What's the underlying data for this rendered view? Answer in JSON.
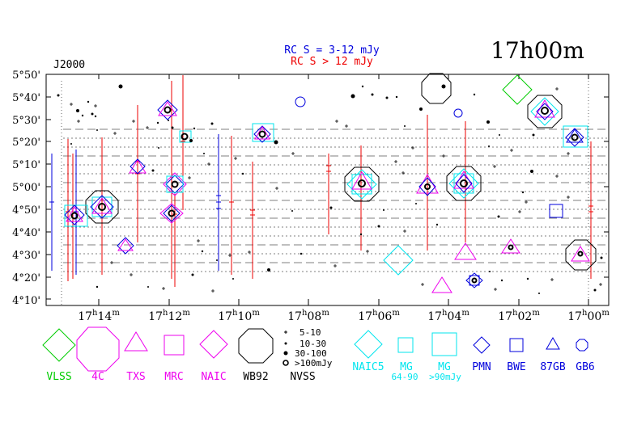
{
  "header": {
    "title": "17h00m",
    "epoch": "J2000",
    "legend_rc_low": "RC S = 3-12 mJy",
    "legend_rc_high": "RC S > 12 mJy"
  },
  "colors": {
    "vlss": "#00cc00",
    "magenta": "#ee00ee",
    "cyan": "#00e5ee",
    "blue": "#0000dd",
    "red": "#ee0000",
    "black": "#000000"
  },
  "axes": {
    "dec_labels": [
      "5°50'",
      "5°40'",
      "5°30'",
      "5°20'",
      "5°10'",
      "5°00'",
      "4°50'",
      "4°40'",
      "4°30'",
      "4°20'",
      "4°10'"
    ],
    "ra_labels": [
      {
        "h": "17",
        "m": "14"
      },
      {
        "h": "17",
        "m": "12"
      },
      {
        "h": "17",
        "m": "10"
      },
      {
        "h": "17",
        "m": "08"
      },
      {
        "h": "17",
        "m": "06"
      },
      {
        "h": "17",
        "m": "04"
      },
      {
        "h": "17",
        "m": "02"
      },
      {
        "h": "17",
        "m": "00"
      }
    ]
  },
  "legend": {
    "vlss": "VLSS",
    "c4": "4C",
    "txs": "TXS",
    "mrc": "MRC",
    "naic": "NAIC",
    "wb92": "WB92",
    "nvss": "NVSS",
    "nvss_sizes": [
      "5-10",
      "10-30",
      "30-100",
      ">100mJy"
    ],
    "naic5": "NAIC5",
    "mg": "MG",
    "mg2": "MG",
    "mg_range_low": "64-90",
    "mg_range_high": ">90mJy",
    "pmn": "PMN",
    "bwe": "BWE",
    "gb87": "87GB",
    "gb6": "GB6"
  }
}
